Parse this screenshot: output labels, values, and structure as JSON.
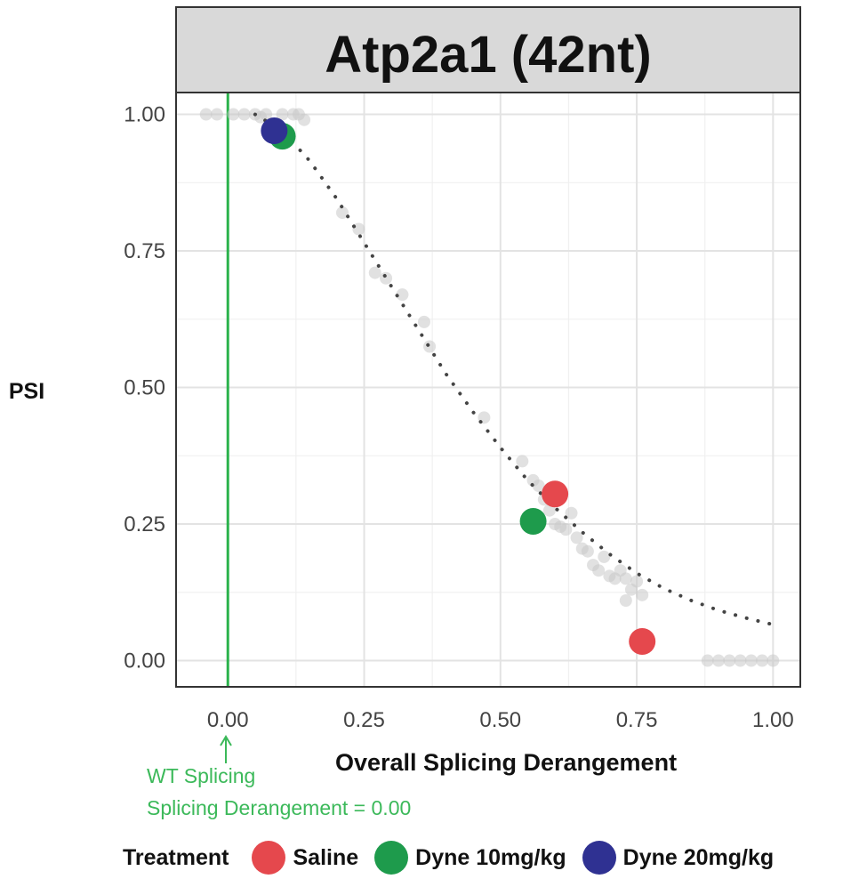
{
  "chart_data": {
    "type": "scatter",
    "panel_title": "Atp2a1 (42nt)",
    "xlabel": "Overall Splicing Derangement",
    "ylabel": "PSI",
    "xlim": [
      -0.095,
      1.05
    ],
    "ylim": [
      -0.048,
      1.04
    ],
    "x_ticks": [
      "0.00",
      "0.25",
      "0.50",
      "0.75",
      "1.00"
    ],
    "y_ticks": [
      "0.00",
      "0.25",
      "0.50",
      "0.75",
      "1.00"
    ],
    "grid": true,
    "reference_line": {
      "x": 0.0,
      "color": "#2bb24c"
    },
    "annotation": {
      "lines": [
        "WT Splicing",
        "Splicing Derangement = 0.00"
      ],
      "color": "#3cb95a"
    },
    "fit_curve": [
      [
        0.05,
        1.0
      ],
      [
        0.1,
        0.97
      ],
      [
        0.15,
        0.915
      ],
      [
        0.2,
        0.845
      ],
      [
        0.25,
        0.765
      ],
      [
        0.3,
        0.685
      ],
      [
        0.35,
        0.605
      ],
      [
        0.4,
        0.525
      ],
      [
        0.45,
        0.455
      ],
      [
        0.5,
        0.39
      ],
      [
        0.55,
        0.33
      ],
      [
        0.6,
        0.28
      ],
      [
        0.65,
        0.235
      ],
      [
        0.7,
        0.195
      ],
      [
        0.75,
        0.16
      ],
      [
        0.8,
        0.132
      ],
      [
        0.85,
        0.11
      ],
      [
        0.9,
        0.092
      ],
      [
        0.95,
        0.078
      ],
      [
        1.0,
        0.066
      ]
    ],
    "background_points": [
      [
        -0.04,
        1.0
      ],
      [
        -0.02,
        1.0
      ],
      [
        0.01,
        1.0
      ],
      [
        0.03,
        1.0
      ],
      [
        0.05,
        1.0
      ],
      [
        0.07,
        1.0
      ],
      [
        0.1,
        1.0
      ],
      [
        0.12,
        1.0
      ],
      [
        0.13,
        1.0
      ],
      [
        0.14,
        0.99
      ],
      [
        0.06,
        0.995
      ],
      [
        0.21,
        0.82
      ],
      [
        0.24,
        0.79
      ],
      [
        0.27,
        0.71
      ],
      [
        0.29,
        0.7
      ],
      [
        0.32,
        0.67
      ],
      [
        0.36,
        0.62
      ],
      [
        0.37,
        0.575
      ],
      [
        0.47,
        0.445
      ],
      [
        0.54,
        0.365
      ],
      [
        0.56,
        0.33
      ],
      [
        0.57,
        0.32
      ],
      [
        0.58,
        0.295
      ],
      [
        0.59,
        0.275
      ],
      [
        0.6,
        0.25
      ],
      [
        0.61,
        0.245
      ],
      [
        0.62,
        0.24
      ],
      [
        0.63,
        0.27
      ],
      [
        0.64,
        0.225
      ],
      [
        0.65,
        0.205
      ],
      [
        0.66,
        0.2
      ],
      [
        0.67,
        0.175
      ],
      [
        0.68,
        0.165
      ],
      [
        0.69,
        0.19
      ],
      [
        0.7,
        0.155
      ],
      [
        0.71,
        0.15
      ],
      [
        0.72,
        0.165
      ],
      [
        0.73,
        0.15
      ],
      [
        0.74,
        0.13
      ],
      [
        0.75,
        0.145
      ],
      [
        0.76,
        0.12
      ],
      [
        0.73,
        0.11
      ],
      [
        0.88,
        0.0
      ],
      [
        0.9,
        0.0
      ],
      [
        0.92,
        0.0
      ],
      [
        0.94,
        0.0
      ],
      [
        0.96,
        0.0
      ],
      [
        0.98,
        0.0
      ],
      [
        1.0,
        0.0
      ]
    ],
    "series": [
      {
        "name": "Saline",
        "color": "#e5484d",
        "points": [
          [
            0.6,
            0.305
          ],
          [
            0.76,
            0.035
          ]
        ]
      },
      {
        "name": "Dyne 10mg/kg",
        "color": "#1e9b4c",
        "points": [
          [
            0.1,
            0.96
          ],
          [
            0.56,
            0.255
          ]
        ]
      },
      {
        "name": "Dyne 20mg/kg",
        "color": "#2f3192",
        "points": [
          [
            0.085,
            0.97
          ]
        ]
      }
    ],
    "legend": {
      "title": "Treatment",
      "position": "bottom"
    }
  }
}
